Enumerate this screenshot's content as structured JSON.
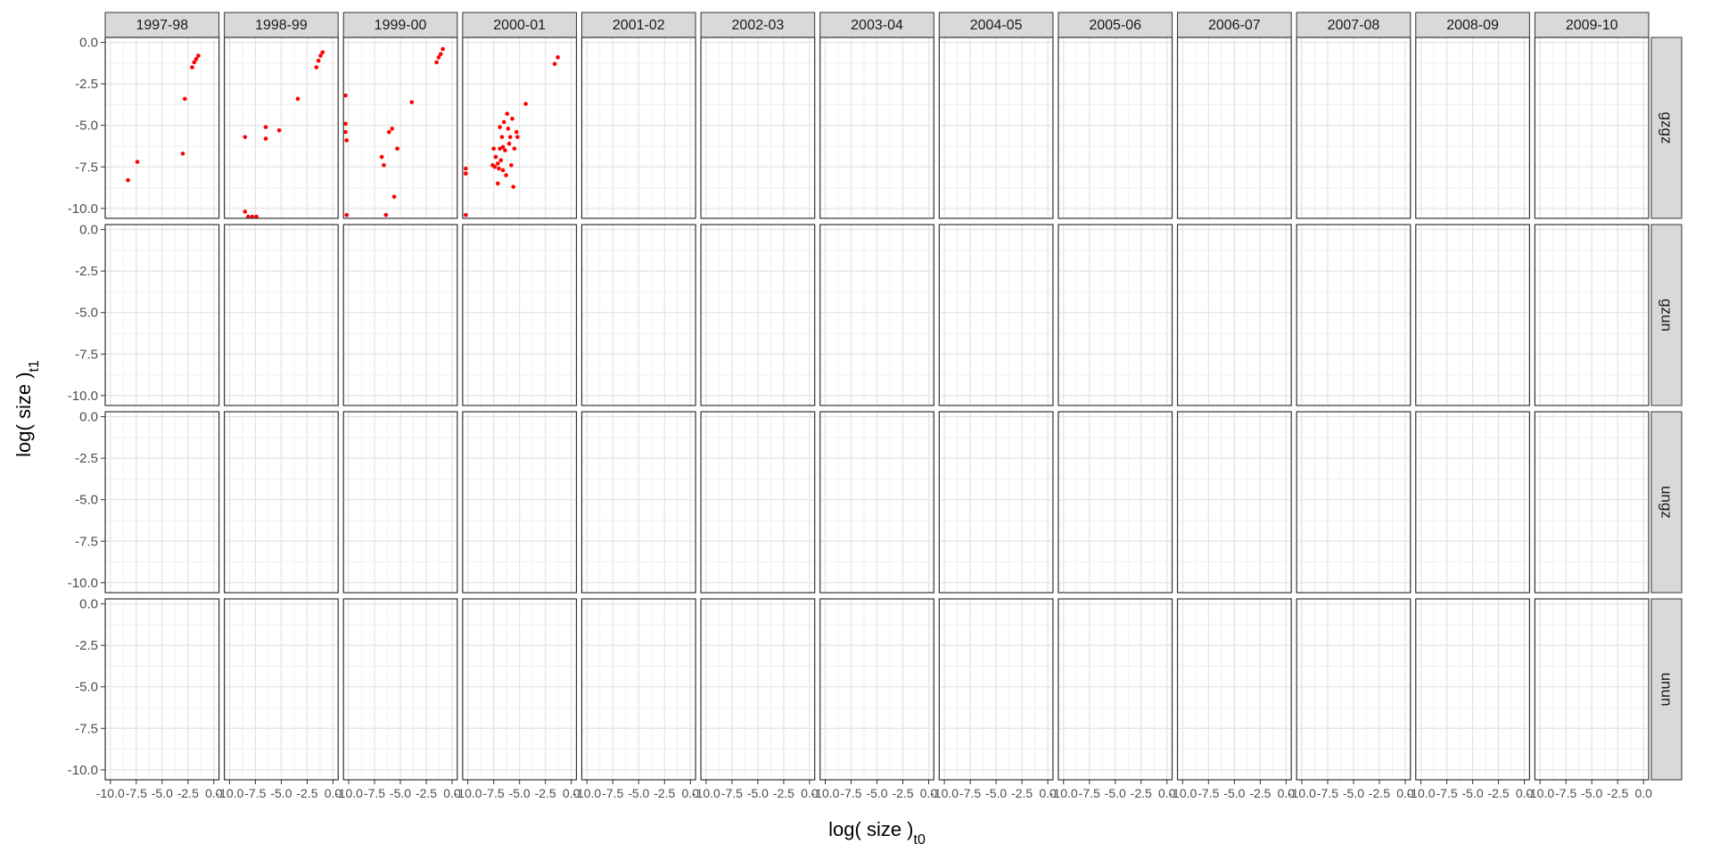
{
  "chart_data": {
    "type": "scatter",
    "facet_layout": "grid",
    "xlabel": "log( size )",
    "xlabel_subscript": "t0",
    "ylabel": "log( size )",
    "ylabel_subscript": "t1",
    "xlim": [
      -10.5,
      0.5
    ],
    "ylim": [
      -10.6,
      0.3
    ],
    "x_ticks": [
      -10.0,
      -7.5,
      -5.0,
      -2.5,
      0.0
    ],
    "x_tick_labels": [
      "-10.0",
      "-7.5",
      "-5.0",
      "-2.5",
      "0.0"
    ],
    "y_ticks": [
      -10.0,
      -7.5,
      -5.0,
      -2.5,
      0.0
    ],
    "y_tick_labels": [
      "-10.0",
      "-7.5",
      "-5.0",
      "-2.5",
      "0.0"
    ],
    "grid": true,
    "point_color": "#ff0000",
    "strip_color": "#d9d9d9",
    "column_facets": [
      "1997-98",
      "1998-99",
      "1999-00",
      "2000-01",
      "2001-02",
      "2002-03",
      "2003-04",
      "2004-05",
      "2005-06",
      "2006-07",
      "2007-08",
      "2008-09",
      "2009-10"
    ],
    "row_facets": [
      "gzgz",
      "gzun",
      "ungz",
      "unun"
    ],
    "panels": [
      [
        {
          "points": [
            [
              -8.3,
              -8.3
            ],
            [
              -7.4,
              -7.2
            ],
            [
              -3.0,
              -6.7
            ],
            [
              -2.8,
              -3.4
            ],
            [
              -2.1,
              -1.5
            ],
            [
              -1.9,
              -1.2
            ],
            [
              -1.7,
              -1.0
            ],
            [
              -1.5,
              -0.8
            ]
          ]
        },
        {
          "points": [
            [
              -8.5,
              -5.7
            ],
            [
              -8.5,
              -10.2
            ],
            [
              -8.2,
              -10.5
            ],
            [
              -7.8,
              -10.5
            ],
            [
              -7.4,
              -10.5
            ],
            [
              -6.5,
              -5.1
            ],
            [
              -6.5,
              -5.8
            ],
            [
              -5.2,
              -5.3
            ],
            [
              -3.4,
              -3.4
            ],
            [
              -1.6,
              -1.5
            ],
            [
              -1.4,
              -1.1
            ],
            [
              -1.2,
              -0.8
            ],
            [
              -1.0,
              -0.6
            ]
          ]
        },
        {
          "points": [
            [
              -10.3,
              -3.2
            ],
            [
              -10.3,
              -4.9
            ],
            [
              -10.3,
              -5.4
            ],
            [
              -10.2,
              -5.9
            ],
            [
              -10.2,
              -10.4
            ],
            [
              -6.8,
              -6.9
            ],
            [
              -6.6,
              -7.4
            ],
            [
              -6.4,
              -10.4
            ],
            [
              -6.1,
              -5.4
            ],
            [
              -5.8,
              -5.2
            ],
            [
              -5.6,
              -9.3
            ],
            [
              -5.3,
              -6.4
            ],
            [
              -3.9,
              -3.6
            ],
            [
              -1.5,
              -1.2
            ],
            [
              -1.3,
              -0.9
            ],
            [
              -1.1,
              -0.7
            ],
            [
              -0.9,
              -0.4
            ]
          ]
        },
        {
          "points": [
            [
              -10.2,
              -7.6
            ],
            [
              -10.2,
              -7.9
            ],
            [
              -10.2,
              -10.4
            ],
            [
              -7.6,
              -7.4
            ],
            [
              -7.5,
              -6.4
            ],
            [
              -7.4,
              -7.5
            ],
            [
              -7.3,
              -6.9
            ],
            [
              -7.1,
              -7.3
            ],
            [
              -7.1,
              -8.5
            ],
            [
              -7.0,
              -7.6
            ],
            [
              -6.9,
              -5.1
            ],
            [
              -6.9,
              -6.4
            ],
            [
              -6.8,
              -7.1
            ],
            [
              -6.7,
              -5.7
            ],
            [
              -6.6,
              -6.3
            ],
            [
              -6.6,
              -7.7
            ],
            [
              -6.5,
              -4.8
            ],
            [
              -6.4,
              -6.5
            ],
            [
              -6.3,
              -8.0
            ],
            [
              -6.2,
              -4.3
            ],
            [
              -6.1,
              -5.2
            ],
            [
              -6.0,
              -6.1
            ],
            [
              -5.9,
              -5.7
            ],
            [
              -5.8,
              -7.4
            ],
            [
              -5.7,
              -4.6
            ],
            [
              -5.6,
              -8.7
            ],
            [
              -5.5,
              -6.4
            ],
            [
              -5.3,
              -5.4
            ],
            [
              -5.2,
              -5.7
            ],
            [
              -4.4,
              -3.7
            ],
            [
              -1.6,
              -1.3
            ],
            [
              -1.3,
              -0.9
            ]
          ]
        }
      ]
    ]
  }
}
